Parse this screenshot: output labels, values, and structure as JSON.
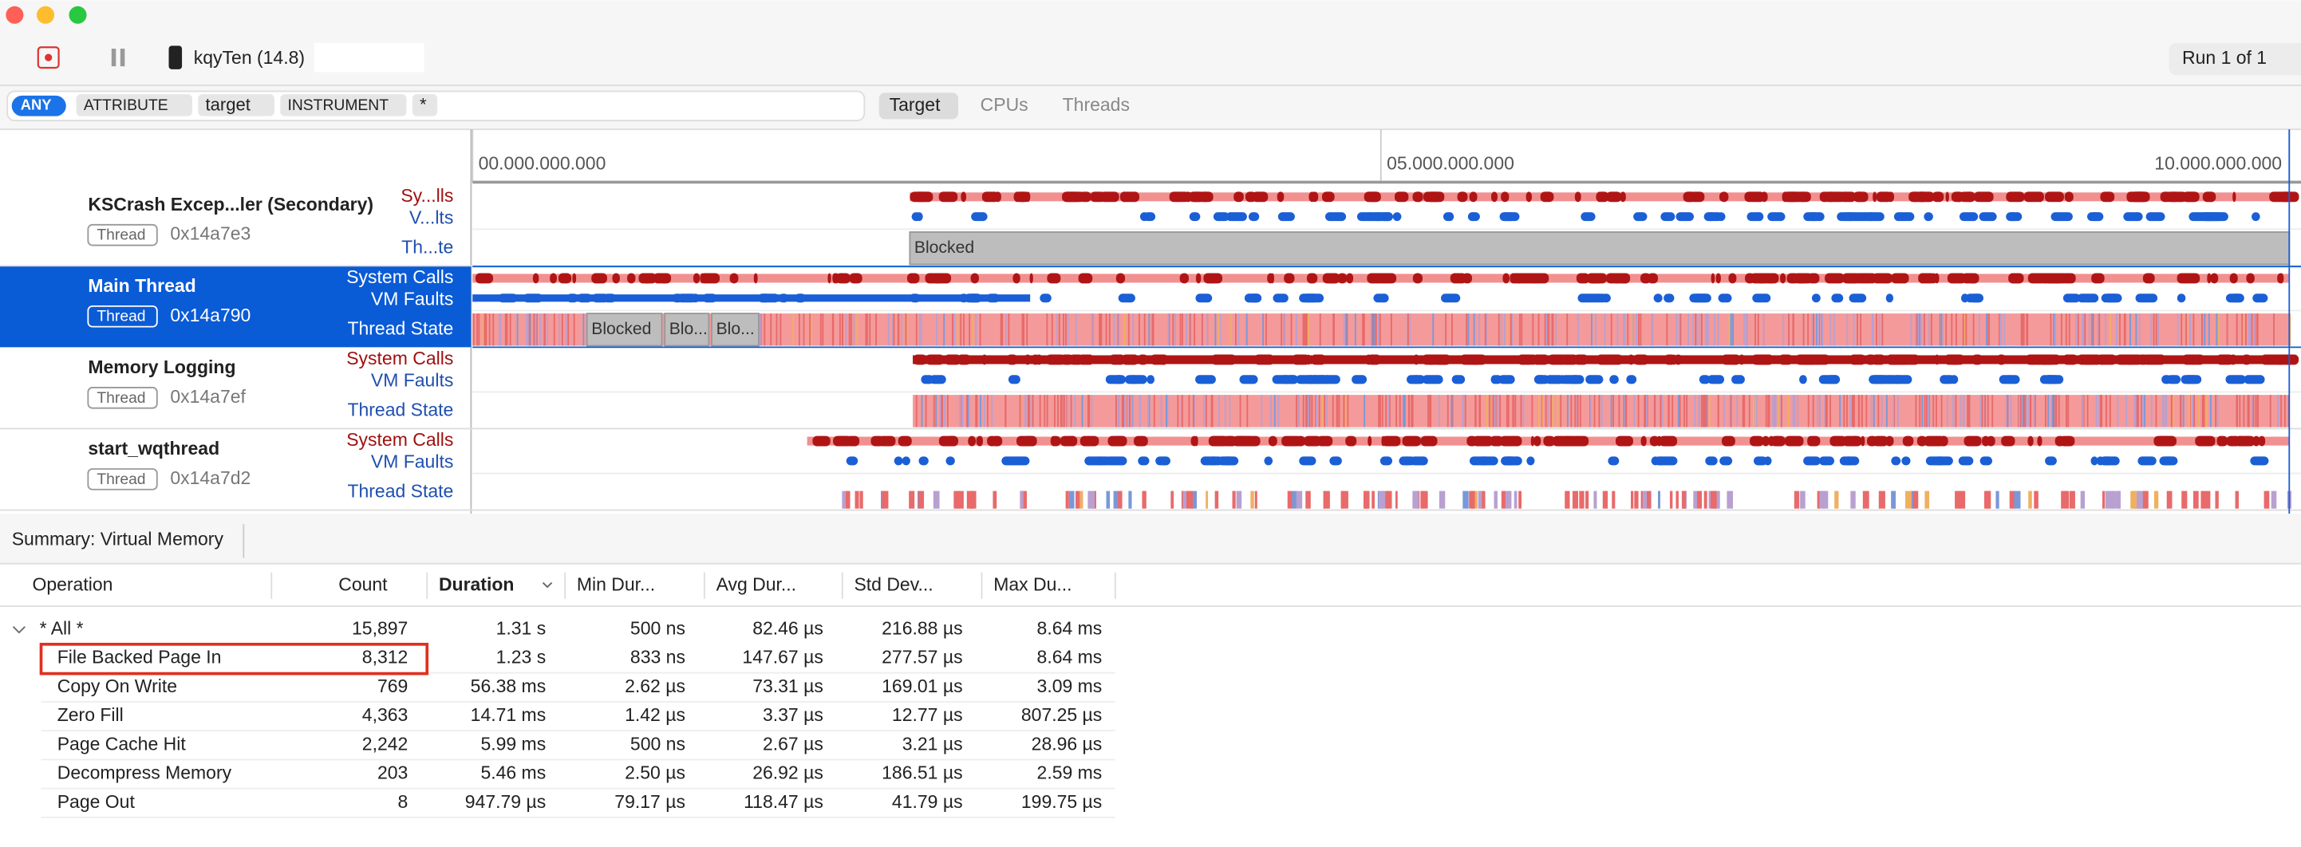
{
  "toolbar": {
    "device": "kqyTen (14.8)",
    "run": "Run 1 of 1"
  },
  "filter": {
    "any": "ANY",
    "tokens": [
      "ATTRIBUTE",
      "target",
      "INSTRUMENT",
      "*"
    ]
  },
  "tabs": [
    "Target",
    "CPUs",
    "Threads"
  ],
  "ruler": [
    "00.000.000.000",
    "05.000.000.000",
    "10.000.000.000"
  ],
  "threads": [
    {
      "name": "KSCrash Excep...ler (Secondary)",
      "tag": "Thread",
      "id": "0x14a7e3",
      "tracks": [
        "Sy...lls",
        "V...lts",
        "Th...te"
      ],
      "states": [
        "Blocked"
      ]
    },
    {
      "name": "Main Thread",
      "tag": "Thread",
      "id": "0x14a790",
      "tracks": [
        "System Calls",
        "VM Faults",
        "Thread State"
      ],
      "states": [
        "Blocked",
        "Blo...",
        "Blo..."
      ]
    },
    {
      "name": "Memory Logging",
      "tag": "Thread",
      "id": "0x14a7ef",
      "tracks": [
        "System Calls",
        "VM Faults",
        "Thread State"
      ],
      "states": []
    },
    {
      "name": "start_wqthread",
      "tag": "Thread",
      "id": "0x14a7d2",
      "tracks": [
        "System Calls",
        "VM Faults",
        "Thread State"
      ],
      "states": []
    }
  ],
  "summary": "Summary: Virtual Memory",
  "table": {
    "columns": [
      "Operation",
      "Count",
      "Duration",
      "Min Dur...",
      "Avg Dur...",
      "Std Dev...",
      "Max Du..."
    ],
    "rows": [
      [
        "* All *",
        "15,897",
        "1.31 s",
        "500 ns",
        "82.46 µs",
        "216.88 µs",
        "8.64 ms"
      ],
      [
        "File Backed Page In",
        "8,312",
        "1.23 s",
        "833 ns",
        "147.67 µs",
        "277.57 µs",
        "8.64 ms"
      ],
      [
        "Copy On Write",
        "769",
        "56.38 ms",
        "2.62 µs",
        "73.31 µs",
        "169.01 µs",
        "3.09 ms"
      ],
      [
        "Zero Fill",
        "4,363",
        "14.71 ms",
        "1.42 µs",
        "3.37 µs",
        "12.77 µs",
        "807.25 µs"
      ],
      [
        "Page Cache Hit",
        "2,242",
        "5.99 ms",
        "500 ns",
        "2.67 µs",
        "3.21 µs",
        "28.96 µs"
      ],
      [
        "Decompress Memory",
        "203",
        "5.46 ms",
        "2.50 µs",
        "26.92 µs",
        "186.51 µs",
        "2.59 ms"
      ],
      [
        "Page Out",
        "8",
        "947.79 µs",
        "79.17 µs",
        "118.47 µs",
        "41.79 µs",
        "199.75 µs"
      ]
    ]
  }
}
